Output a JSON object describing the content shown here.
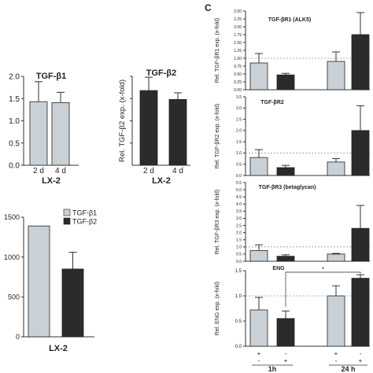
{
  "panel_letter": "C",
  "colors": {
    "light": "#c9d1d6",
    "dark": "#2b2b2b",
    "axis": "#333333",
    "ref_line": "#999999"
  },
  "chart_data": [
    {
      "id": "a1",
      "type": "bar",
      "title": "TGF-β1",
      "ylabel": "",
      "xgroup_label": "LX-2",
      "categories": [
        "2 d",
        "4 d"
      ],
      "values": [
        1.43,
        1.41
      ],
      "errors": [
        0.45,
        0.23
      ],
      "colors": [
        "light",
        "light"
      ],
      "ylim": [
        0,
        2.0
      ],
      "yticks": [
        0,
        0.5,
        1.0,
        1.5,
        2.0
      ]
    },
    {
      "id": "a2",
      "type": "bar",
      "title": "TGF-β2",
      "ylabel": "Rel. TGF-β2 exp. (x-fold)",
      "xgroup_label": "LX-2",
      "categories": [
        "2 d",
        "4 d"
      ],
      "values": [
        1.68,
        1.48
      ],
      "errors": [
        0.3,
        0.15
      ],
      "colors": [
        "dark",
        "dark"
      ],
      "ylim": [
        0,
        2.0
      ],
      "yticks": []
    },
    {
      "id": "b",
      "type": "bar",
      "title": "",
      "ylabel": "",
      "xgroup_label": "LX-2",
      "categories": [
        "TGF-β1",
        "TGF-β2"
      ],
      "values": [
        1390,
        850
      ],
      "errors": [
        0,
        210
      ],
      "colors": [
        "light",
        "dark"
      ],
      "ylim": [
        0,
        1500
      ],
      "yticks": [
        0,
        500,
        1000,
        1500
      ],
      "legend": [
        {
          "label": "TGF-β1",
          "color": "light"
        },
        {
          "label": "TGF-β2",
          "color": "dark"
        }
      ],
      "legend_position": "top-right"
    },
    {
      "id": "c1",
      "type": "bar",
      "title": "TGF-βR1 (ALK5)",
      "ylabel": "Rel. TGF-βR1 exp. (x-fold)",
      "values": [
        0.85,
        0.47,
        0.9,
        1.75
      ],
      "errors": [
        0.3,
        0.05,
        0.3,
        0.7
      ],
      "colors": [
        "light",
        "dark",
        "light",
        "dark"
      ],
      "ylim": [
        0,
        2.5
      ],
      "yticks": [
        0,
        0.25,
        0.5,
        0.75,
        1.0,
        1.25,
        1.5,
        1.75,
        2.0,
        2.25,
        2.5
      ],
      "ytick_labels": [
        "0.00",
        "0.25",
        "0.50",
        "0.75",
        "1.00",
        "1.25",
        "1.50",
        "1.75",
        "2.00",
        "2.25",
        "2.50"
      ],
      "ref_line": 1.0
    },
    {
      "id": "c2",
      "type": "bar",
      "title": "TGF-βR2",
      "ylabel": "Rel. TGF-βR2 exp. (x-fold)",
      "values": [
        0.8,
        0.35,
        0.6,
        2.0
      ],
      "errors": [
        0.35,
        0.1,
        0.15,
        1.1
      ],
      "colors": [
        "light",
        "dark",
        "light",
        "dark"
      ],
      "ylim": [
        0,
        3.5
      ],
      "yticks": [
        0,
        0.5,
        1.0,
        1.5,
        2.0,
        2.5,
        3.0,
        3.5
      ],
      "ytick_labels": [
        "0.0",
        "0.5",
        "1.0",
        "1.5",
        "2.0",
        "2.5",
        "3.0",
        "3.5"
      ],
      "ref_line": 1.0
    },
    {
      "id": "c3",
      "type": "bar",
      "title": "TGF-βR3 (betaglycan)",
      "ylabel": "Rel. TGF-βR3 exp. (x-fold)",
      "values": [
        0.75,
        0.35,
        0.5,
        2.3
      ],
      "errors": [
        0.4,
        0.1,
        0.05,
        1.6
      ],
      "colors": [
        "light",
        "dark",
        "light",
        "dark"
      ],
      "ylim": [
        0,
        5.5
      ],
      "yticks": [
        0,
        0.5,
        1.0,
        1.5,
        2.0,
        2.5,
        3.0,
        3.5,
        4.0,
        4.5,
        5.0,
        5.5
      ],
      "ytick_labels": [
        "0.0",
        "0.5",
        "1.0",
        "1.5",
        "2.0",
        "2.5",
        "3.0",
        "3.5",
        "4.0",
        "4.5",
        "5.0",
        "5.5"
      ],
      "ref_line": 1.0
    },
    {
      "id": "c4",
      "type": "bar",
      "title": "ENG",
      "ylabel": "Rel. ENG exp. (x-fold)",
      "values": [
        0.72,
        0.55,
        1.0,
        1.35
      ],
      "errors": [
        0.25,
        0.15,
        0.2,
        0.07
      ],
      "colors": [
        "light",
        "dark",
        "light",
        "dark"
      ],
      "ylim": [
        0,
        1.5
      ],
      "yticks": [
        0,
        0.5,
        1.0,
        1.5
      ],
      "ytick_labels": [
        "0.0",
        "0.5",
        "1.0",
        "1.5"
      ],
      "ref_line": 1.0,
      "annotation": "*",
      "treatment_rows": [
        [
          "+",
          "-",
          "+",
          "-"
        ],
        [
          "-",
          "+",
          "-",
          "+"
        ]
      ],
      "time_groups": [
        "1h",
        "24 h"
      ]
    }
  ]
}
